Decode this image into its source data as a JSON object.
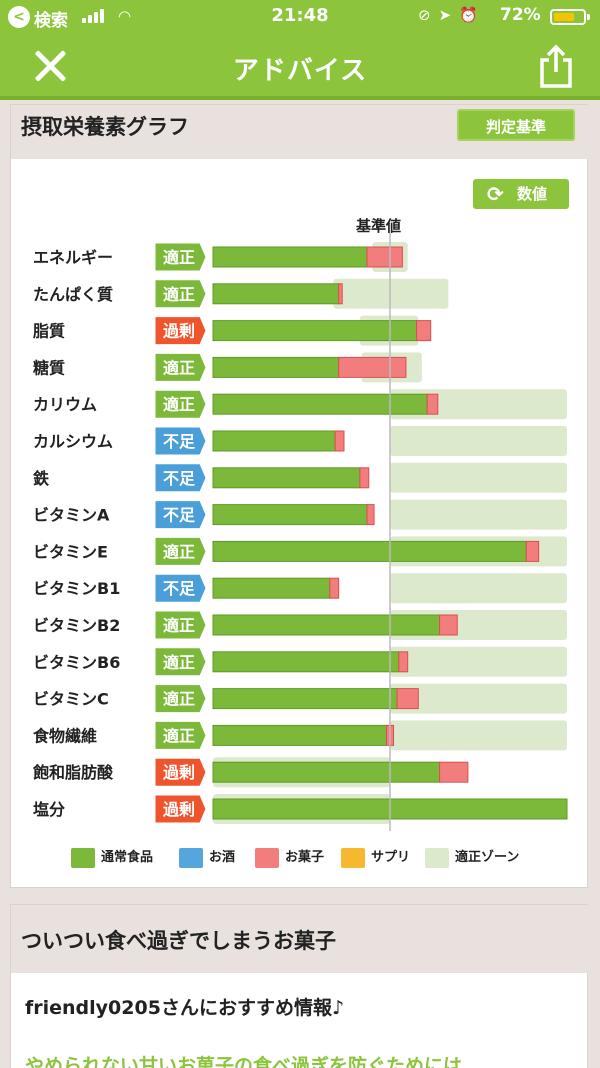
{
  "status_bar": {
    "back_label": "検索",
    "time": "21:48",
    "battery": "72%",
    "battery_level": 0.72,
    "icons": [
      "signal-icon",
      "wifi-icon",
      "rotation-lock-icon",
      "location-icon",
      "alarm-icon",
      "battery-icon"
    ]
  },
  "nav": {
    "title": "アドバイス",
    "close_icon": "close-icon",
    "share_icon": "share-icon"
  },
  "graph_card": {
    "title": "摂取栄養素グラフ",
    "criteria_button": "判定基準",
    "value_button": "数値",
    "value_button_icon": "refresh-icon",
    "baseline_label": "基準値"
  },
  "chart_data": {
    "type": "bar",
    "orientation": "horizontal",
    "stacked": true,
    "baseline_label": "基準値",
    "x_axis": {
      "unit": "% of 基準値",
      "visible_range": [
        0,
        200
      ]
    },
    "colors": {
      "通常食品": "#7cb83a",
      "お酒": "#55a6dd",
      "お菓子": "#f27d7d",
      "サプリ": "#f5b82e",
      "適正ゾーン": "#dde9cd"
    },
    "status_colors": {
      "適正": "#7cb83a",
      "過剰": "#f0542d",
      "不足": "#4a9fd8"
    },
    "nutrients": [
      {
        "name": "エネルギー",
        "status": "適正",
        "food": 87,
        "snack": 20,
        "zone": [
          90,
          110
        ]
      },
      {
        "name": "たんぱく質",
        "status": "適正",
        "food": 71,
        "snack": 2,
        "zone": [
          68,
          133
        ]
      },
      {
        "name": "脂質",
        "status": "過剰",
        "food": 115,
        "snack": 8,
        "zone": [
          83,
          116
        ]
      },
      {
        "name": "糖質",
        "status": "適正",
        "food": 71,
        "snack": 38,
        "zone": [
          84,
          118
        ]
      },
      {
        "name": "カリウム",
        "status": "適正",
        "food": 121,
        "snack": 6,
        "zone": [
          100,
          200
        ]
      },
      {
        "name": "カルシウム",
        "status": "不足",
        "food": 69,
        "snack": 5,
        "zone": [
          100,
          200
        ]
      },
      {
        "name": "鉄",
        "status": "不足",
        "food": 83,
        "snack": 5,
        "zone": [
          100,
          200
        ]
      },
      {
        "name": "ビタミンA",
        "status": "不足",
        "food": 87,
        "snack": 4,
        "zone": [
          100,
          200
        ]
      },
      {
        "name": "ビタミンE",
        "status": "適正",
        "food": 177,
        "snack": 7,
        "zone": [
          100,
          200
        ]
      },
      {
        "name": "ビタミンB1",
        "status": "不足",
        "food": 66,
        "snack": 5,
        "zone": [
          100,
          200
        ]
      },
      {
        "name": "ビタミンB2",
        "status": "適正",
        "food": 128,
        "snack": 10,
        "zone": [
          100,
          200
        ]
      },
      {
        "name": "ビタミンB6",
        "status": "適正",
        "food": 105,
        "snack": 5,
        "zone": [
          100,
          200
        ]
      },
      {
        "name": "ビタミンC",
        "status": "適正",
        "food": 104,
        "snack": 12,
        "zone": [
          100,
          200
        ]
      },
      {
        "name": "食物繊維",
        "status": "適正",
        "food": 98,
        "snack": 4,
        "zone": [
          100,
          200
        ]
      },
      {
        "name": "飽和脂肪酸",
        "status": "過剰",
        "food": 128,
        "snack": 16,
        "zone": [
          0,
          100
        ]
      },
      {
        "name": "塩分",
        "status": "過剰",
        "food": 200,
        "snack": 0,
        "zone": [
          0,
          100
        ]
      }
    ],
    "legend": [
      "通常食品",
      "お酒",
      "お菓子",
      "サプリ",
      "適正ゾーン"
    ],
    "legend_placement": "bottom"
  },
  "snack_card": {
    "title": "ついつい食べ過ぎでしまうお菓子",
    "line1": "friendly0205さんにおすすめ情報♪",
    "line2": "やめられない甘いお菓子の食べ過ぎを防ぐためには"
  }
}
